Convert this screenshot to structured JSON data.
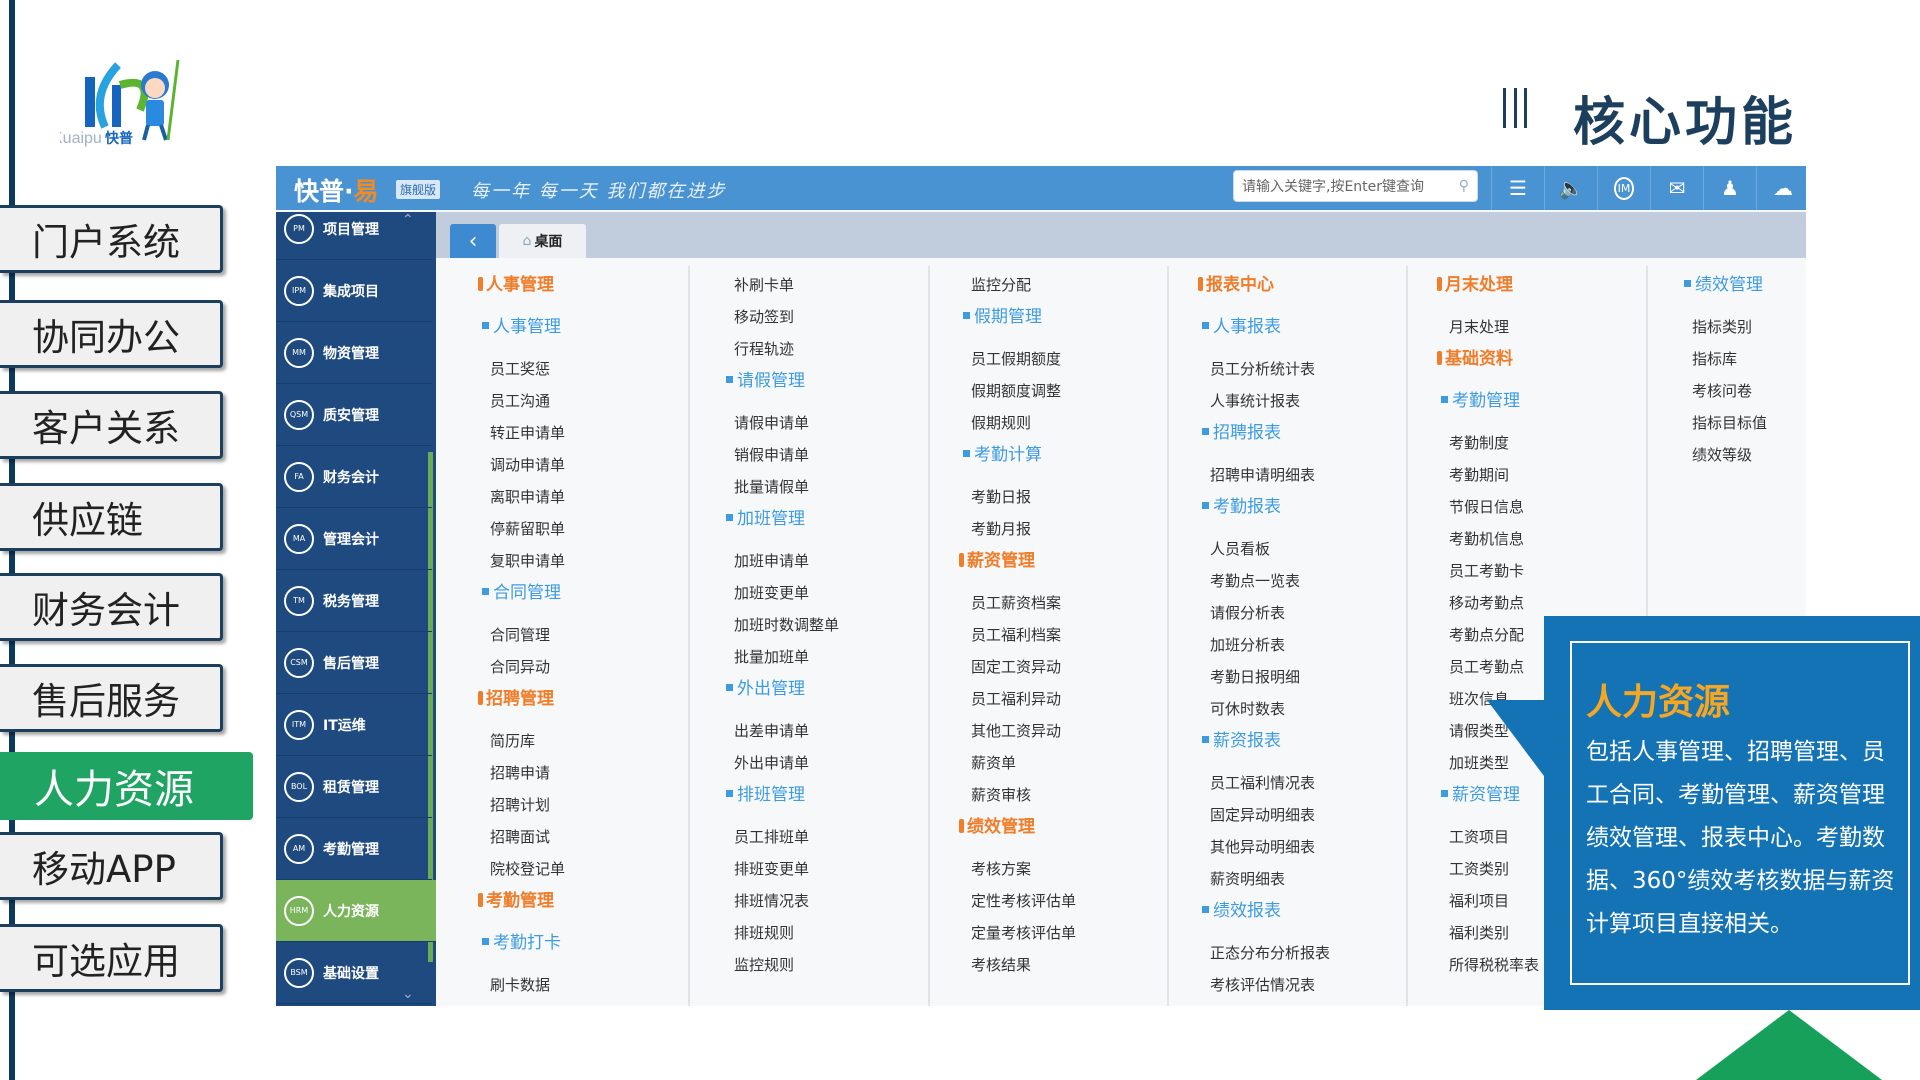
{
  "logo": {
    "text_en": "Kuaipu",
    "text_cn": "快普"
  },
  "page_title": "核心功能",
  "left_nav": [
    {
      "label": "门户系统",
      "active": false
    },
    {
      "label": "协同办公",
      "active": false
    },
    {
      "label": "客户关系",
      "active": false
    },
    {
      "label": "供应链",
      "active": false
    },
    {
      "label": "财务会计",
      "active": false
    },
    {
      "label": "售后服务",
      "active": false
    },
    {
      "label": "人力资源",
      "active": true
    },
    {
      "label": "移动APP",
      "active": false
    },
    {
      "label": "可选应用",
      "active": false
    }
  ],
  "app": {
    "brand": "快普·",
    "brand_accent": "易",
    "edition": "旗舰版",
    "slogan": "每一年 每一天 我们都在进步",
    "search_placeholder": "请输入关键字,按Enter键查询",
    "header_icons": [
      "list-icon",
      "speaker-icon",
      "im-icon",
      "mail-icon",
      "user-icon",
      "cloud-icon"
    ],
    "tab": "桌面",
    "sidebar": [
      {
        "code": "PM",
        "label": "项目管理"
      },
      {
        "code": "IPM",
        "label": "集成项目"
      },
      {
        "code": "MM",
        "label": "物资管理"
      },
      {
        "code": "QSM",
        "label": "质安管理"
      },
      {
        "code": "FA",
        "label": "财务会计"
      },
      {
        "code": "MA",
        "label": "管理会计"
      },
      {
        "code": "TM",
        "label": "税务管理"
      },
      {
        "code": "CSM",
        "label": "售后管理"
      },
      {
        "code": "ITM",
        "label": "IT运维"
      },
      {
        "code": "BOL",
        "label": "租赁管理"
      },
      {
        "code": "AM",
        "label": "考勤管理"
      },
      {
        "code": "HRM",
        "label": "人力资源",
        "active": true
      },
      {
        "code": "BSM",
        "label": "基础设置"
      }
    ],
    "columns": [
      [
        [
          "h",
          "人事管理"
        ],
        [
          "s",
          "人事管理"
        ],
        [
          "i",
          "员工奖惩"
        ],
        [
          "i",
          "员工沟通"
        ],
        [
          "i",
          "转正申请单"
        ],
        [
          "i",
          "调动申请单"
        ],
        [
          "i",
          "离职申请单"
        ],
        [
          "i",
          "停薪留职单"
        ],
        [
          "i",
          "复职申请单"
        ],
        [
          "s",
          "合同管理"
        ],
        [
          "i",
          "合同管理"
        ],
        [
          "i",
          "合同异动"
        ],
        [
          "h",
          "招聘管理"
        ],
        [
          "i",
          "简历库"
        ],
        [
          "i",
          "招聘申请"
        ],
        [
          "i",
          "招聘计划"
        ],
        [
          "i",
          "招聘面试"
        ],
        [
          "i",
          "院校登记单"
        ],
        [
          "h",
          "考勤管理"
        ],
        [
          "s",
          "考勤打卡"
        ],
        [
          "i",
          "刷卡数据"
        ]
      ],
      [
        [
          "i",
          "补刷卡单"
        ],
        [
          "i",
          "移动签到"
        ],
        [
          "i",
          "行程轨迹"
        ],
        [
          "s",
          "请假管理"
        ],
        [
          "i",
          "请假申请单"
        ],
        [
          "i",
          "销假申请单"
        ],
        [
          "i",
          "批量请假单"
        ],
        [
          "s",
          "加班管理"
        ],
        [
          "i",
          "加班申请单"
        ],
        [
          "i",
          "加班变更单"
        ],
        [
          "i",
          "加班时数调整单"
        ],
        [
          "i",
          "批量加班单"
        ],
        [
          "s",
          "外出管理"
        ],
        [
          "i",
          "出差申请单"
        ],
        [
          "i",
          "外出申请单"
        ],
        [
          "s",
          "排班管理"
        ],
        [
          "i",
          "员工排班单"
        ],
        [
          "i",
          "排班变更单"
        ],
        [
          "i",
          "排班情况表"
        ],
        [
          "i",
          "排班规则"
        ],
        [
          "i",
          "监控规则"
        ]
      ],
      [
        [
          "i",
          "监控分配"
        ],
        [
          "s",
          "假期管理"
        ],
        [
          "i",
          "员工假期额度"
        ],
        [
          "i",
          "假期额度调整"
        ],
        [
          "i",
          "假期规则"
        ],
        [
          "s",
          "考勤计算"
        ],
        [
          "i",
          "考勤日报"
        ],
        [
          "i",
          "考勤月报"
        ],
        [
          "h",
          "薪资管理"
        ],
        [
          "i",
          "员工薪资档案"
        ],
        [
          "i",
          "员工福利档案"
        ],
        [
          "i",
          "固定工资异动"
        ],
        [
          "i",
          "员工福利异动"
        ],
        [
          "i",
          "其他工资异动"
        ],
        [
          "i",
          "薪资单"
        ],
        [
          "i",
          "薪资审核"
        ],
        [
          "h",
          "绩效管理"
        ],
        [
          "i",
          "考核方案"
        ],
        [
          "i",
          "定性考核评估单"
        ],
        [
          "i",
          "定量考核评估单"
        ],
        [
          "i",
          "考核结果"
        ]
      ],
      [
        [
          "h",
          "报表中心"
        ],
        [
          "s",
          "人事报表"
        ],
        [
          "i",
          "员工分析统计表"
        ],
        [
          "i",
          "人事统计报表"
        ],
        [
          "s",
          "招聘报表"
        ],
        [
          "i",
          "招聘申请明细表"
        ],
        [
          "s",
          "考勤报表"
        ],
        [
          "i",
          "人员看板"
        ],
        [
          "i",
          "考勤点一览表"
        ],
        [
          "i",
          "请假分析表"
        ],
        [
          "i",
          "加班分析表"
        ],
        [
          "i",
          "考勤日报明细"
        ],
        [
          "i",
          "可休时数表"
        ],
        [
          "s",
          "薪资报表"
        ],
        [
          "i",
          "员工福利情况表"
        ],
        [
          "i",
          "固定异动明细表"
        ],
        [
          "i",
          "其他异动明细表"
        ],
        [
          "i",
          "薪资明细表"
        ],
        [
          "s",
          "绩效报表"
        ],
        [
          "i",
          "正态分布分析报表"
        ],
        [
          "i",
          "考核评估情况表"
        ]
      ],
      [
        [
          "h",
          "月末处理"
        ],
        [
          "i",
          "月末处理"
        ],
        [
          "h",
          "基础资料"
        ],
        [
          "s",
          "考勤管理"
        ],
        [
          "i",
          "考勤制度"
        ],
        [
          "i",
          "考勤期间"
        ],
        [
          "i",
          "节假日信息"
        ],
        [
          "i",
          "考勤机信息"
        ],
        [
          "i",
          "员工考勤卡"
        ],
        [
          "i",
          "移动考勤点"
        ],
        [
          "i",
          "考勤点分配"
        ],
        [
          "i",
          "员工考勤点"
        ],
        [
          "i",
          "班次信息"
        ],
        [
          "i",
          "请假类型"
        ],
        [
          "i",
          "加班类型"
        ],
        [
          "s",
          "薪资管理"
        ],
        [
          "i",
          "工资项目"
        ],
        [
          "i",
          "工资类别"
        ],
        [
          "i",
          "福利项目"
        ],
        [
          "i",
          "福利类别"
        ],
        [
          "i",
          "所得税税率表"
        ]
      ],
      [
        [
          "s",
          "绩效管理"
        ],
        [
          "i",
          "指标类别"
        ],
        [
          "i",
          "指标库"
        ],
        [
          "i",
          "考核问卷"
        ],
        [
          "i",
          "指标目标值"
        ],
        [
          "i",
          "绩效等级"
        ]
      ]
    ]
  },
  "callout": {
    "title": "人力资源",
    "text": "包括人事管理、招聘管理、员工合同、考勤管理、薪资管理绩效管理、报表中心。考勤数据、360°绩效考核数据与薪资计算项目直接相关。"
  },
  "colors": {
    "nav_active": "#1fa463",
    "header": "#4a93d3",
    "sidebar": "#1e4a80",
    "sidebar_active": "#7ab55c",
    "heading": "#ef7d2a",
    "subheading": "#3e9be0",
    "callout": "#1473b4",
    "callout_title": "#f5a623"
  }
}
